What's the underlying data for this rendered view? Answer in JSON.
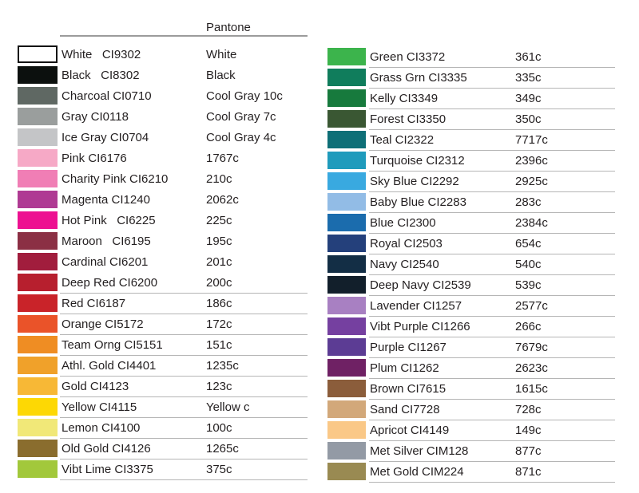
{
  "colors": {
    "background": "#ffffff",
    "text": "#231f20",
    "header_rule": "#9b9b9b",
    "row_divider": "#b5b5b5",
    "white_swatch_border": "#121212"
  },
  "chart_data": {
    "type": "table",
    "pantone_header": "Pantone",
    "column_headers": [
      "swatch",
      "name-code",
      "pantone"
    ],
    "left_rows": [
      {
        "name": "White",
        "code": "CI9302",
        "pantone": "White",
        "hex": "#ffffff",
        "swatch_border": true,
        "wide_gap": true,
        "underline": false
      },
      {
        "name": "Black",
        "code": "CI8302",
        "pantone": "Black",
        "hex": "#0c100e",
        "swatch_border": false,
        "wide_gap": true,
        "underline": false
      },
      {
        "name": "Charcoal",
        "code": "CI0710",
        "pantone": "Cool Gray 10c",
        "hex": "#5f6863",
        "swatch_border": false,
        "wide_gap": false,
        "underline": false
      },
      {
        "name": "Gray",
        "code": "CI0118",
        "pantone": "Cool Gray 7c",
        "hex": "#9a9e9d",
        "swatch_border": false,
        "wide_gap": false,
        "underline": false
      },
      {
        "name": "Ice Gray",
        "code": "CI0704",
        "pantone": "Cool Gray 4c",
        "hex": "#c4c5c7",
        "swatch_border": false,
        "wide_gap": false,
        "underline": false
      },
      {
        "name": "Pink",
        "code": "CI6176",
        "pantone": "1767c",
        "hex": "#f6a9c6",
        "swatch_border": false,
        "wide_gap": false,
        "underline": false
      },
      {
        "name": "Charity Pink",
        "code": "CI6210",
        "pantone": "210c",
        "hex": "#f07eb5",
        "swatch_border": false,
        "wide_gap": false,
        "underline": false
      },
      {
        "name": "Magenta",
        "code": "CI1240",
        "pantone": "2062c",
        "hex": "#af3a93",
        "swatch_border": false,
        "wide_gap": false,
        "underline": false
      },
      {
        "name": "Hot Pink",
        "code": "CI6225",
        "pantone": "225c",
        "hex": "#ed1191",
        "swatch_border": false,
        "wide_gap": true,
        "underline": false
      },
      {
        "name": "Maroon",
        "code": "CI6195",
        "pantone": "195c",
        "hex": "#8b2f44",
        "swatch_border": false,
        "wide_gap": true,
        "underline": false
      },
      {
        "name": "Cardinal",
        "code": "CI6201",
        "pantone": "201c",
        "hex": "#a11d3d",
        "swatch_border": false,
        "wide_gap": false,
        "underline": false
      },
      {
        "name": "Deep Red",
        "code": "CI6200",
        "pantone": "200c",
        "hex": "#b71f2e",
        "swatch_border": false,
        "wide_gap": false,
        "underline": true
      },
      {
        "name": "Red",
        "code": "CI6187",
        "pantone": "186c",
        "hex": "#c92329",
        "swatch_border": false,
        "wide_gap": false,
        "underline": true
      },
      {
        "name": "Orange",
        "code": "CI5172",
        "pantone": "172c",
        "hex": "#ea5329",
        "swatch_border": false,
        "wide_gap": false,
        "underline": true
      },
      {
        "name": "Team Orng",
        "code": "CI5151",
        "pantone": "151c",
        "hex": "#ef8d23",
        "swatch_border": false,
        "wide_gap": false,
        "underline": true
      },
      {
        "name": "Athl. Gold",
        "code": "CI4401",
        "pantone": "1235c",
        "hex": "#f0a12a",
        "swatch_border": false,
        "wide_gap": false,
        "underline": true
      },
      {
        "name": "Gold",
        "code": "CI4123",
        "pantone": "123c",
        "hex": "#f7b836",
        "swatch_border": false,
        "wide_gap": false,
        "underline": true
      },
      {
        "name": "Yellow",
        "code": "CI4115",
        "pantone": "Yellow c",
        "hex": "#fdd804",
        "swatch_border": false,
        "wide_gap": false,
        "underline": true
      },
      {
        "name": "Lemon",
        "code": "CI4100",
        "pantone": "100c",
        "hex": "#f1e878",
        "swatch_border": false,
        "wide_gap": false,
        "underline": true
      },
      {
        "name": "Old Gold",
        "code": "CI4126",
        "pantone": "1265c",
        "hex": "#8a6d2e",
        "swatch_border": false,
        "wide_gap": false,
        "underline": true
      },
      {
        "name": "Vibt Lime",
        "code": "CI3375",
        "pantone": "375c",
        "hex": "#a2c83b",
        "swatch_border": false,
        "wide_gap": false,
        "underline": true
      }
    ],
    "right_rows": [
      {
        "name": "Green",
        "code": "CI3372",
        "pantone": "361c",
        "hex": "#3cb44c",
        "swatch_border": false,
        "wide_gap": false,
        "underline": true
      },
      {
        "name": "Grass Grn",
        "code": "CI3335",
        "pantone": "335c",
        "hex": "#107d5c",
        "swatch_border": false,
        "wide_gap": false,
        "underline": true
      },
      {
        "name": "Kelly",
        "code": "CI3349",
        "pantone": "349c",
        "hex": "#177a3d",
        "swatch_border": false,
        "wide_gap": false,
        "underline": true
      },
      {
        "name": "Forest",
        "code": "CI3350",
        "pantone": "350c",
        "hex": "#3a5733",
        "swatch_border": false,
        "wide_gap": false,
        "underline": true
      },
      {
        "name": "Teal",
        "code": "CI2322",
        "pantone": "7717c",
        "hex": "#0e6f77",
        "swatch_border": false,
        "wide_gap": false,
        "underline": true
      },
      {
        "name": "Turquoise",
        "code": "CI2312",
        "pantone": "2396c",
        "hex": "#1f9bbc",
        "swatch_border": false,
        "wide_gap": false,
        "underline": true
      },
      {
        "name": "Sky Blue",
        "code": "CI2292",
        "pantone": "2925c",
        "hex": "#39a9e0",
        "swatch_border": false,
        "wide_gap": false,
        "underline": true
      },
      {
        "name": "Baby Blue",
        "code": "CI2283",
        "pantone": "283c",
        "hex": "#92bce6",
        "swatch_border": false,
        "wide_gap": false,
        "underline": true
      },
      {
        "name": "Blue",
        "code": "CI2300",
        "pantone": "2384c",
        "hex": "#1b6cad",
        "swatch_border": false,
        "wide_gap": false,
        "underline": true
      },
      {
        "name": "Royal",
        "code": "CI2503",
        "pantone": "654c",
        "hex": "#24407b",
        "swatch_border": false,
        "wide_gap": false,
        "underline": true
      },
      {
        "name": "Navy",
        "code": "CI2540",
        "pantone": "540c",
        "hex": "#132e45",
        "swatch_border": false,
        "wide_gap": false,
        "underline": true
      },
      {
        "name": "Deep Navy",
        "code": "CI2539",
        "pantone": "539c",
        "hex": "#121f2b",
        "swatch_border": false,
        "wide_gap": false,
        "underline": true
      },
      {
        "name": "Lavender",
        "code": "CI1257",
        "pantone": "2577c",
        "hex": "#a880c2",
        "swatch_border": false,
        "wide_gap": false,
        "underline": true
      },
      {
        "name": "Vibt Purple",
        "code": "CI1266",
        "pantone": "266c",
        "hex": "#7540a0",
        "swatch_border": false,
        "wide_gap": false,
        "underline": true
      },
      {
        "name": "Purple",
        "code": "CI1267",
        "pantone": "7679c",
        "hex": "#5c3c94",
        "swatch_border": false,
        "wide_gap": false,
        "underline": true
      },
      {
        "name": "Plum",
        "code": "CI1262",
        "pantone": "2623c",
        "hex": "#6f2164",
        "swatch_border": false,
        "wide_gap": false,
        "underline": true
      },
      {
        "name": "Brown",
        "code": "CI7615",
        "pantone": "1615c",
        "hex": "#8b5d3b",
        "swatch_border": false,
        "wide_gap": false,
        "underline": true
      },
      {
        "name": "Sand",
        "code": "CI7728",
        "pantone": "728c",
        "hex": "#d2a87a",
        "swatch_border": false,
        "wide_gap": false,
        "underline": true
      },
      {
        "name": "Apricot",
        "code": "CI4149",
        "pantone": "149c",
        "hex": "#fac887",
        "swatch_border": false,
        "wide_gap": false,
        "underline": true
      },
      {
        "name": "Met Silver",
        "code": "CIM128",
        "pantone": "877c",
        "hex": "#939aa5",
        "swatch_border": false,
        "wide_gap": false,
        "underline": true
      },
      {
        "name": "Met Gold",
        "code": "CIM224",
        "pantone": "871c",
        "hex": "#998a52",
        "swatch_border": false,
        "wide_gap": false,
        "underline": true
      }
    ]
  }
}
